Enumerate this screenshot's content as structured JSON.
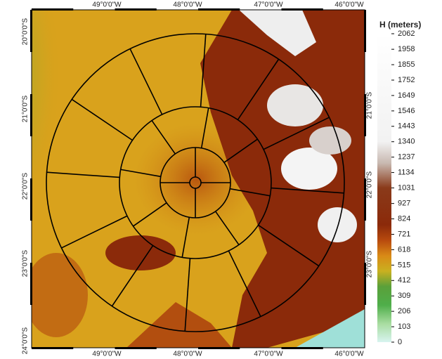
{
  "map": {
    "top_labels": [
      "49°0'0\"W",
      "48°0'0\"W",
      "47°0'0\"W",
      "46°0'0\"W"
    ],
    "bottom_labels": [
      "49°0'0\"W",
      "48°0'0\"W",
      "47°0'0\"W",
      "46°0'0\"W"
    ],
    "left_labels": [
      "20°0'0\"S",
      "21°0'0\"S",
      "22°0'0\"S",
      "23°0'0\"S",
      "24°0'0\"S"
    ],
    "right_labels": [
      "21°0'0\"S",
      "22°0'0\"S",
      "23°0'0\"S"
    ],
    "legend": {
      "title": "H (meters)",
      "ticks": [
        2062,
        1958,
        1855,
        1752,
        1649,
        1546,
        1443,
        1340,
        1237,
        1134,
        1031,
        927,
        824,
        721,
        618,
        515,
        412,
        309,
        206,
        103,
        0
      ]
    }
  }
}
